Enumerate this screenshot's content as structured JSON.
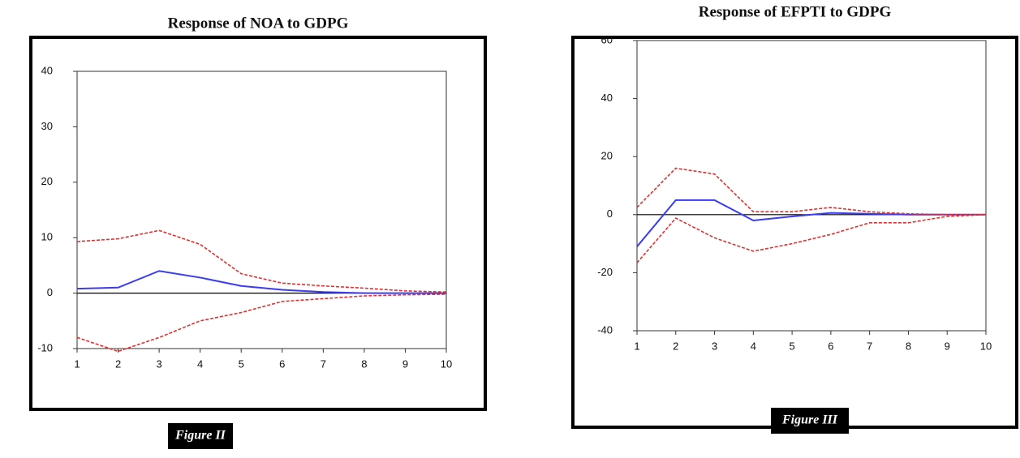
{
  "chart_data": [
    {
      "type": "line",
      "title": "Response of NOA to GDPG",
      "caption": "Figure II",
      "x": [
        1,
        2,
        3,
        4,
        5,
        6,
        7,
        8,
        9,
        10
      ],
      "xlim": [
        1,
        10
      ],
      "xticks": [
        1,
        2,
        3,
        4,
        5,
        6,
        7,
        8,
        9,
        10
      ],
      "ylim": [
        -10,
        40
      ],
      "yticks": [
        -10,
        0,
        10,
        20,
        30,
        40
      ],
      "zero_line": true,
      "series": [
        {
          "color": "#3b3bf0",
          "style": "solid",
          "values": [
            0.8,
            1,
            4,
            2.8,
            1.3,
            0.6,
            0.2,
            0,
            0,
            0
          ]
        },
        {
          "color": "#e03030",
          "style": "dashed",
          "values": [
            9.3,
            9.8,
            11.3,
            8.8,
            3.5,
            1.8,
            1.3,
            0.9,
            0.4,
            0.2
          ]
        },
        {
          "color": "#e03030",
          "style": "dashed",
          "values": [
            -8,
            -10.5,
            -8,
            -5,
            -3.5,
            -1.5,
            -1,
            -0.5,
            -0.3,
            -0.2
          ]
        }
      ]
    },
    {
      "type": "line",
      "title": "Response of EFPTI to GDPG",
      "caption": "Figure III",
      "x": [
        1,
        2,
        3,
        4,
        5,
        6,
        7,
        8,
        9,
        10
      ],
      "xlim": [
        1,
        10
      ],
      "xticks": [
        1,
        2,
        3,
        4,
        5,
        6,
        7,
        8,
        9,
        10
      ],
      "ylim": [
        -40,
        60
      ],
      "yticks": [
        -40,
        -20,
        0,
        20,
        40,
        60
      ],
      "zero_line": true,
      "series": [
        {
          "color": "#3b3bf0",
          "style": "solid",
          "values": [
            -11,
            5,
            5,
            -2,
            -0.6,
            0.6,
            0.3,
            0,
            0,
            0
          ]
        },
        {
          "color": "#e03030",
          "style": "dashed",
          "values": [
            2.5,
            16,
            14,
            1,
            1,
            2.5,
            1,
            0.3,
            0,
            0
          ]
        },
        {
          "color": "#e03030",
          "style": "dashed",
          "values": [
            -16.6,
            -1.2,
            -8,
            -12.6,
            -10,
            -6.8,
            -2.8,
            -2.8,
            -0.6,
            0
          ]
        }
      ]
    }
  ]
}
